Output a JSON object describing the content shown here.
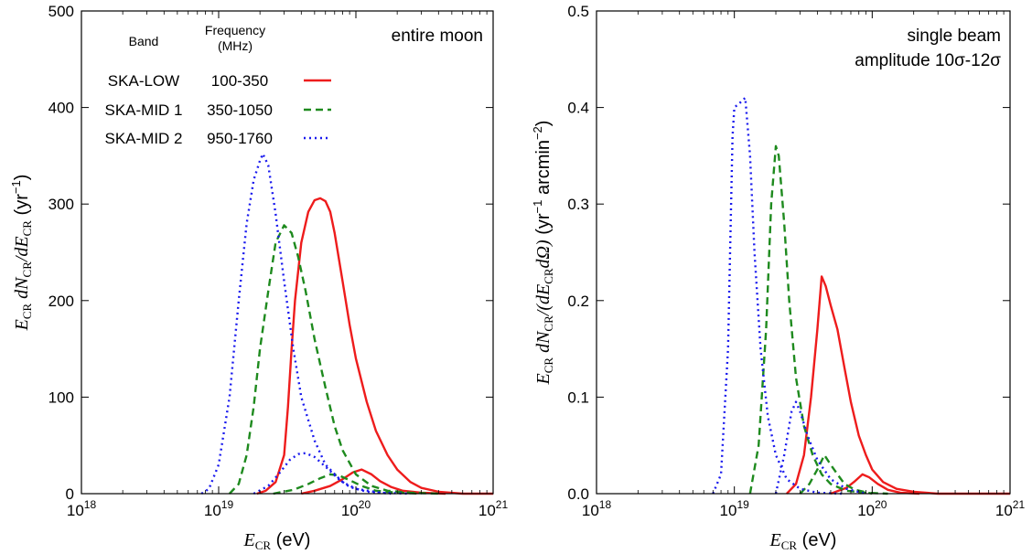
{
  "chart_data": [
    {
      "type": "line",
      "panel_label": "entire moon",
      "xlabel": {
        "symbol": "E",
        "sub": "CR",
        "unit": " (eV)"
      },
      "ylabel": "E_CR dN_CR/dE_CR (yr^-1)",
      "x_scale": "log",
      "xlim": [
        1e+18,
        1e+21
      ],
      "ylim": [
        0,
        500
      ],
      "xtick_labels": [
        {
          "base": "10",
          "exp": "18"
        },
        {
          "base": "10",
          "exp": "19"
        },
        {
          "base": "10",
          "exp": "20"
        },
        {
          "base": "10",
          "exp": "21"
        }
      ],
      "ytick_labels": [
        "0",
        "100",
        "200",
        "300",
        "400",
        "500"
      ],
      "grid": false,
      "legend": {
        "placement": "top-left",
        "header_band": "Band",
        "header_freq_line1": "Frequency",
        "header_freq_line2": "(MHz)",
        "entries": [
          {
            "band": "SKA-LOW",
            "freq": "100-350"
          },
          {
            "band": "SKA-MID 1",
            "freq": "350-1050"
          },
          {
            "band": "SKA-MID 2",
            "freq": "950-1760"
          }
        ]
      },
      "series": [
        {
          "name": "SKA-LOW",
          "color": "#ee1c1c",
          "style": "solid",
          "points": [
            [
              1.9e+19,
              0
            ],
            [
              2.2e+19,
              3
            ],
            [
              2.6e+19,
              12
            ],
            [
              3e+19,
              40
            ],
            [
              3.2e+19,
              90
            ],
            [
              3.4e+19,
              150
            ],
            [
              3.6e+19,
              200
            ],
            [
              4e+19,
              260
            ],
            [
              4.5e+19,
              292
            ],
            [
              5e+19,
              304
            ],
            [
              5.5e+19,
              306
            ],
            [
              6e+19,
              303
            ],
            [
              6.5e+19,
              292
            ],
            [
              7e+19,
              270
            ],
            [
              8e+19,
              220
            ],
            [
              9e+19,
              175
            ],
            [
              1e+20,
              140
            ],
            [
              1.2e+20,
              95
            ],
            [
              1.4e+20,
              65
            ],
            [
              1.7e+20,
              40
            ],
            [
              2e+20,
              25
            ],
            [
              2.5e+20,
              12
            ],
            [
              3e+20,
              6
            ],
            [
              4e+20,
              2
            ],
            [
              6e+20,
              0
            ],
            [
              1e+21,
              0
            ]
          ]
        },
        {
          "name": "SKA-LOW",
          "color": "#ee1c1c",
          "style": "solid",
          "points": [
            [
              4e+19,
              0
            ],
            [
              5e+19,
              3
            ],
            [
              6.5e+19,
              8
            ],
            [
              8e+19,
              15
            ],
            [
              9.5e+19,
              22
            ],
            [
              1.1e+20,
              25
            ],
            [
              1.3e+20,
              20
            ],
            [
              1.5e+20,
              13
            ],
            [
              1.8e+20,
              7
            ],
            [
              2.2e+20,
              3
            ],
            [
              3e+20,
              1
            ],
            [
              4.5e+20,
              0
            ]
          ]
        },
        {
          "name": "SKA-MID 1",
          "color": "#1e8a1e",
          "style": "dashed",
          "points": [
            [
              1.2e+19,
              0
            ],
            [
              1.4e+19,
              10
            ],
            [
              1.6e+19,
              40
            ],
            [
              1.8e+19,
              90
            ],
            [
              2e+19,
              150
            ],
            [
              2.3e+19,
              210
            ],
            [
              2.6e+19,
              260
            ],
            [
              3e+19,
              278
            ],
            [
              3.4e+19,
              270
            ],
            [
              3.8e+19,
              245
            ],
            [
              4.3e+19,
              210
            ],
            [
              5e+19,
              160
            ],
            [
              6e+19,
              110
            ],
            [
              7e+19,
              70
            ],
            [
              8e+19,
              45
            ],
            [
              1e+20,
              20
            ],
            [
              1.3e+20,
              8
            ],
            [
              1.7e+20,
              3
            ],
            [
              2.5e+20,
              1
            ],
            [
              4e+20,
              0
            ]
          ]
        },
        {
          "name": "SKA-MID 1",
          "color": "#1e8a1e",
          "style": "dashed",
          "points": [
            [
              2.5e+19,
              0
            ],
            [
              3.5e+19,
              4
            ],
            [
              4.5e+19,
              10
            ],
            [
              5.5e+19,
              16
            ],
            [
              6.5e+19,
              20
            ],
            [
              7.5e+19,
              19
            ],
            [
              9e+19,
              14
            ],
            [
              1.1e+20,
              8
            ],
            [
              1.4e+20,
              3
            ],
            [
              2e+20,
              1
            ],
            [
              3e+20,
              0
            ]
          ]
        },
        {
          "name": "SKA-MID 2",
          "color": "#1a1aee",
          "style": "dotted",
          "points": [
            [
              7.5e+18,
              0
            ],
            [
              8.5e+18,
              5
            ],
            [
              1e+19,
              30
            ],
            [
              1.2e+19,
              100
            ],
            [
              1.4e+19,
              200
            ],
            [
              1.6e+19,
              280
            ],
            [
              1.8e+19,
              325
            ],
            [
              2e+19,
              345
            ],
            [
              2.1e+19,
              352
            ],
            [
              2.3e+19,
              340
            ],
            [
              2.6e+19,
              290
            ],
            [
              3e+19,
              220
            ],
            [
              3.5e+19,
              150
            ],
            [
              4e+19,
              100
            ],
            [
              5e+19,
              55
            ],
            [
              6e+19,
              30
            ],
            [
              8e+19,
              12
            ],
            [
              1e+20,
              5
            ],
            [
              1.5e+20,
              1
            ],
            [
              2.5e+20,
              0
            ]
          ]
        },
        {
          "name": "SKA-MID 2",
          "color": "#1a1aee",
          "style": "dotted",
          "points": [
            [
              1.8e+19,
              0
            ],
            [
              2.3e+19,
              8
            ],
            [
              2.8e+19,
              22
            ],
            [
              3.3e+19,
              35
            ],
            [
              3.8e+19,
              41
            ],
            [
              4.3e+19,
              42
            ],
            [
              5e+19,
              38
            ],
            [
              6e+19,
              28
            ],
            [
              7.5e+19,
              15
            ],
            [
              9e+19,
              7
            ],
            [
              1.2e+20,
              2
            ],
            [
              1.8e+20,
              0
            ]
          ]
        }
      ]
    },
    {
      "type": "line",
      "panel_label_line1": "single beam",
      "panel_label_line2": "amplitude 10σ-12σ",
      "xlabel": {
        "symbol": "E",
        "sub": "CR",
        "unit": " (eV)"
      },
      "ylabel": "E_CR dN_CR/(dE_CR dΩ) (yr^-1 arcmin^-2)",
      "x_scale": "log",
      "xlim": [
        1e+18,
        1e+21
      ],
      "ylim": [
        0,
        0.5
      ],
      "xtick_labels": [
        {
          "base": "10",
          "exp": "18"
        },
        {
          "base": "10",
          "exp": "19"
        },
        {
          "base": "10",
          "exp": "20"
        },
        {
          "base": "10",
          "exp": "21"
        }
      ],
      "ytick_labels": [
        "0.0",
        "0.1",
        "0.2",
        "0.3",
        "0.4",
        "0.5"
      ],
      "grid": false,
      "series": [
        {
          "name": "SKA-LOW",
          "color": "#ee1c1c",
          "style": "solid",
          "points": [
            [
              2.4e+19,
              0
            ],
            [
              2.8e+19,
              0.01
            ],
            [
              3.2e+19,
              0.04
            ],
            [
              3.6e+19,
              0.1
            ],
            [
              4e+19,
              0.17
            ],
            [
              4.3e+19,
              0.225
            ],
            [
              4.6e+19,
              0.215
            ],
            [
              5e+19,
              0.195
            ],
            [
              5.6e+19,
              0.17
            ],
            [
              6.3e+19,
              0.13
            ],
            [
              7e+19,
              0.095
            ],
            [
              8e+19,
              0.06
            ],
            [
              9e+19,
              0.04
            ],
            [
              1e+20,
              0.025
            ],
            [
              1.2e+20,
              0.012
            ],
            [
              1.5e+20,
              0.005
            ],
            [
              2e+20,
              0.002
            ],
            [
              3e+20,
              0
            ],
            [
              1e+21,
              0
            ]
          ]
        },
        {
          "name": "SKA-LOW",
          "color": "#ee1c1c",
          "style": "solid",
          "points": [
            [
              5e+19,
              0
            ],
            [
              6.5e+19,
              0.006
            ],
            [
              7.5e+19,
              0.013
            ],
            [
              8.5e+19,
              0.02
            ],
            [
              9.5e+19,
              0.017
            ],
            [
              1.1e+20,
              0.01
            ],
            [
              1.3e+20,
              0.004
            ],
            [
              1.6e+20,
              0.001
            ],
            [
              2.2e+20,
              0
            ]
          ]
        },
        {
          "name": "SKA-MID 1",
          "color": "#1e8a1e",
          "style": "dashed",
          "points": [
            [
              1.3e+19,
              0
            ],
            [
              1.5e+19,
              0.05
            ],
            [
              1.7e+19,
              0.17
            ],
            [
              1.85e+19,
              0.3
            ],
            [
              2e+19,
              0.36
            ],
            [
              2.1e+19,
              0.35
            ],
            [
              2.3e+19,
              0.28
            ],
            [
              2.5e+19,
              0.2
            ],
            [
              2.8e+19,
              0.12
            ],
            [
              3.2e+19,
              0.07
            ],
            [
              3.7e+19,
              0.04
            ],
            [
              4.3e+19,
              0.02
            ],
            [
              5e+19,
              0.01
            ],
            [
              6.5e+19,
              0.003
            ],
            [
              9e+19,
              0.001
            ],
            [
              1.3e+20,
              0
            ]
          ]
        },
        {
          "name": "SKA-MID 1",
          "color": "#1e8a1e",
          "style": "dashed",
          "points": [
            [
              3e+19,
              0
            ],
            [
              3.5e+19,
              0.01
            ],
            [
              4e+19,
              0.025
            ],
            [
              4.5e+19,
              0.04
            ],
            [
              5e+19,
              0.03
            ],
            [
              5.6e+19,
              0.02
            ],
            [
              6.3e+19,
              0.01
            ],
            [
              7.5e+19,
              0.004
            ],
            [
              1e+20,
              0
            ]
          ]
        },
        {
          "name": "SKA-MID 2",
          "color": "#1a1aee",
          "style": "dotted",
          "points": [
            [
              7e+18,
              0
            ],
            [
              8e+18,
              0.02
            ],
            [
              9e+18,
              0.15
            ],
            [
              9.7e+18,
              0.37
            ],
            [
              1e+19,
              0.4
            ],
            [
              1.1e+19,
              0.405
            ],
            [
              1.2e+19,
              0.41
            ],
            [
              1.3e+19,
              0.35
            ],
            [
              1.4e+19,
              0.25
            ],
            [
              1.55e+19,
              0.15
            ],
            [
              1.75e+19,
              0.08
            ],
            [
              2e+19,
              0.04
            ],
            [
              2.4e+19,
              0.015
            ],
            [
              3e+19,
              0.005
            ],
            [
              4e+19,
              0.001
            ],
            [
              6e+19,
              0
            ]
          ]
        },
        {
          "name": "SKA-MID 2",
          "color": "#1a1aee",
          "style": "dotted",
          "points": [
            [
              2e+19,
              0
            ],
            [
              2.3e+19,
              0.04
            ],
            [
              2.6e+19,
              0.085
            ],
            [
              2.8e+19,
              0.095
            ],
            [
              3e+19,
              0.085
            ],
            [
              3.4e+19,
              0.06
            ],
            [
              4e+19,
              0.035
            ],
            [
              5e+19,
              0.015
            ],
            [
              6.5e+19,
              0.005
            ],
            [
              9e+19,
              0
            ]
          ]
        }
      ]
    }
  ]
}
